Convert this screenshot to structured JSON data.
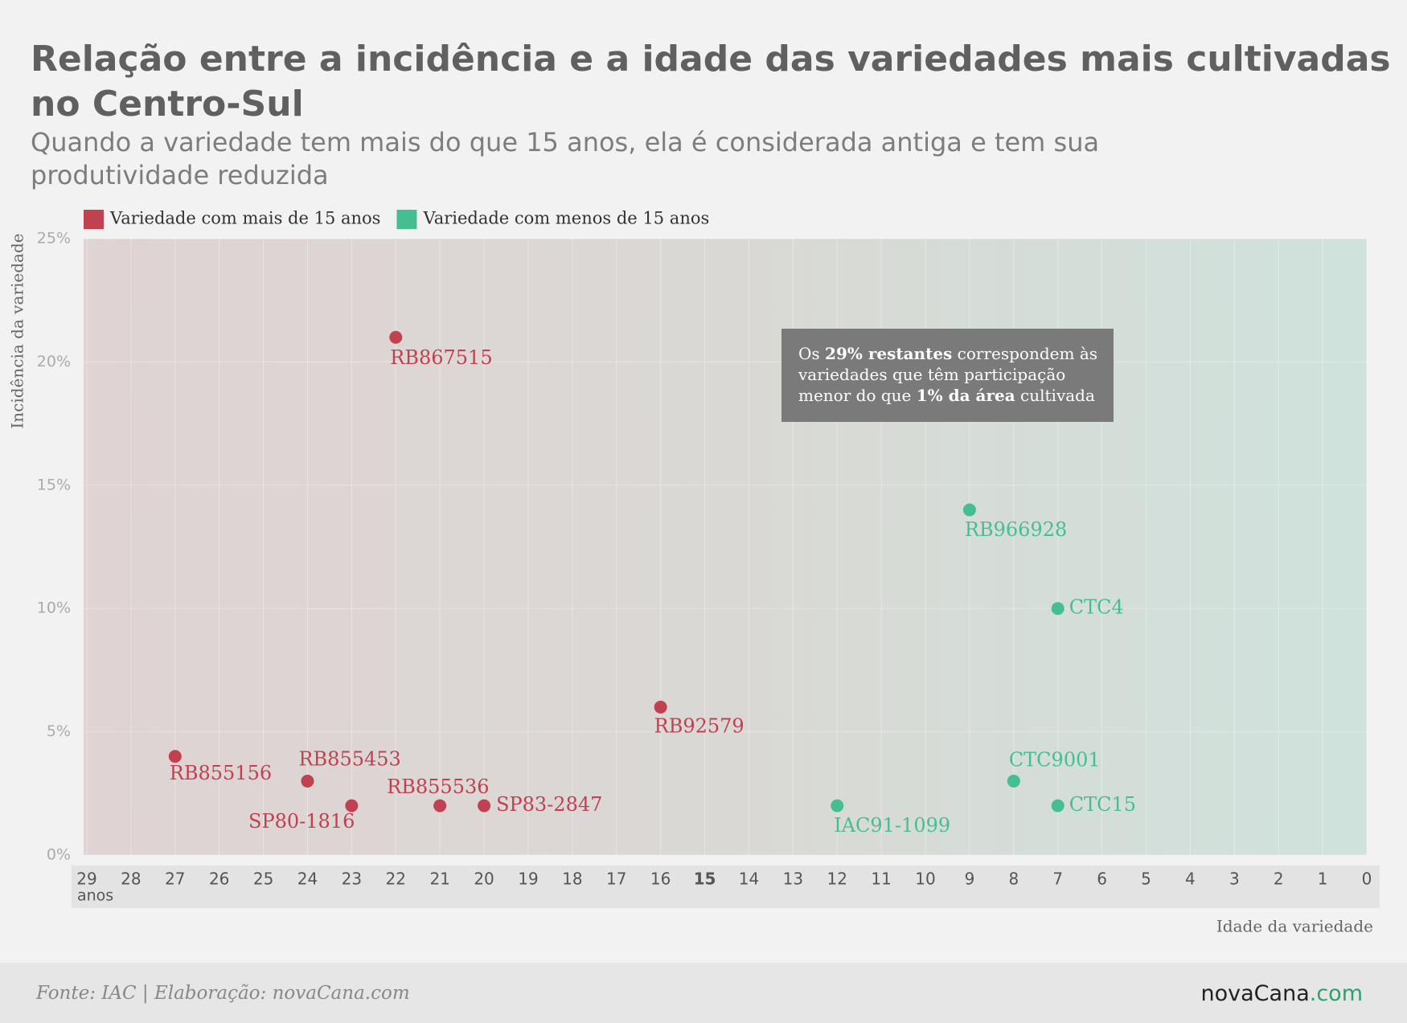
{
  "chart_data": {
    "type": "scatter",
    "title_lines": [
      "Relação entre a incidência e a idade das variedades mais cultivadas",
      "no Centro-Sul"
    ],
    "subtitle_lines": [
      "Quando a variedade tem mais do que 15 anos, ela é considerada antiga e tem sua",
      "produtividade reduzida"
    ],
    "y_label": "Incidência da variedade",
    "x_label": "Idade da variedade",
    "x_unit": "anos",
    "xlim": [
      29,
      0
    ],
    "xticks": [
      29,
      28,
      27,
      26,
      25,
      24,
      23,
      22,
      21,
      20,
      19,
      18,
      17,
      16,
      15,
      14,
      13,
      12,
      11,
      10,
      9,
      8,
      7,
      6,
      5,
      4,
      3,
      2,
      1,
      0
    ],
    "bold_xtick": 15,
    "ylim": [
      0,
      25
    ],
    "yticks": [
      {
        "value": 0,
        "label": "0%"
      },
      {
        "value": 5,
        "label": "5%"
      },
      {
        "value": 10,
        "label": "10%"
      },
      {
        "value": 15,
        "label": "15%"
      },
      {
        "value": 20,
        "label": "20%"
      },
      {
        "value": 25,
        "label": "25%"
      }
    ],
    "grid": true,
    "series": [
      {
        "name": "Variedade com menos de 15 anos",
        "color": "#45bf91",
        "labels": [
          "IAC91-1099",
          "RB966928",
          "CTC9001",
          "CTC4",
          "CTC15"
        ],
        "x": [
          12,
          9,
          8,
          7,
          7
        ],
        "values": [
          2,
          14,
          3,
          10,
          2
        ]
      },
      {
        "name": "Variedade com mais de 15 anos",
        "color": "#c0414f",
        "labels": [
          "RB855156",
          "RB855453",
          "SP80-1816",
          "RB867515",
          "RB855536",
          "SP83-2847",
          "RB92579"
        ],
        "x": [
          27,
          24,
          23,
          22,
          21,
          20,
          16
        ],
        "values": [
          4,
          3,
          2,
          21,
          2,
          2,
          6
        ]
      }
    ],
    "annotation": {
      "lines": [
        [
          {
            "text": "Os "
          },
          {
            "text": "29% restantes",
            "bold": true
          },
          {
            "text": " correspondem às"
          }
        ],
        [
          {
            "text": "variedades que têm participação"
          }
        ],
        [
          {
            "text": "menor do que "
          },
          {
            "text": "1% da área",
            "bold": true
          },
          {
            "text": " cultivada"
          }
        ]
      ]
    },
    "source": "Fonte: IAC | Elaboração: novaCana.com",
    "logo": {
      "main": "novaCana",
      "suffix": ".com"
    }
  }
}
